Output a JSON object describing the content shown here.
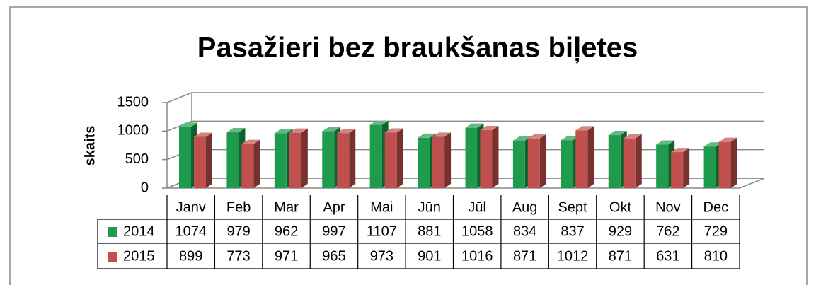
{
  "chart_data": {
    "type": "bar3d",
    "title": "Pasažieri bez braukšanas biļetes",
    "ylabel": "skaits",
    "categories": [
      "Janv",
      "Feb",
      "Mar",
      "Apr",
      "Mai",
      "Jūn",
      "Jūl",
      "Aug",
      "Sept",
      "Okt",
      "Nov",
      "Dec"
    ],
    "series": [
      {
        "name": "2014",
        "color": "#1e9b4c",
        "values": [
          1074,
          979,
          962,
          997,
          1107,
          881,
          1058,
          834,
          837,
          929,
          762,
          729
        ]
      },
      {
        "name": "2015",
        "color": "#c0504d",
        "values": [
          899,
          773,
          971,
          965,
          973,
          901,
          1016,
          871,
          1012,
          871,
          631,
          810
        ]
      }
    ],
    "ylim": [
      0,
      1500
    ],
    "yticks": [
      0,
      500,
      1000,
      1500
    ],
    "grid": true,
    "data_table": true
  }
}
